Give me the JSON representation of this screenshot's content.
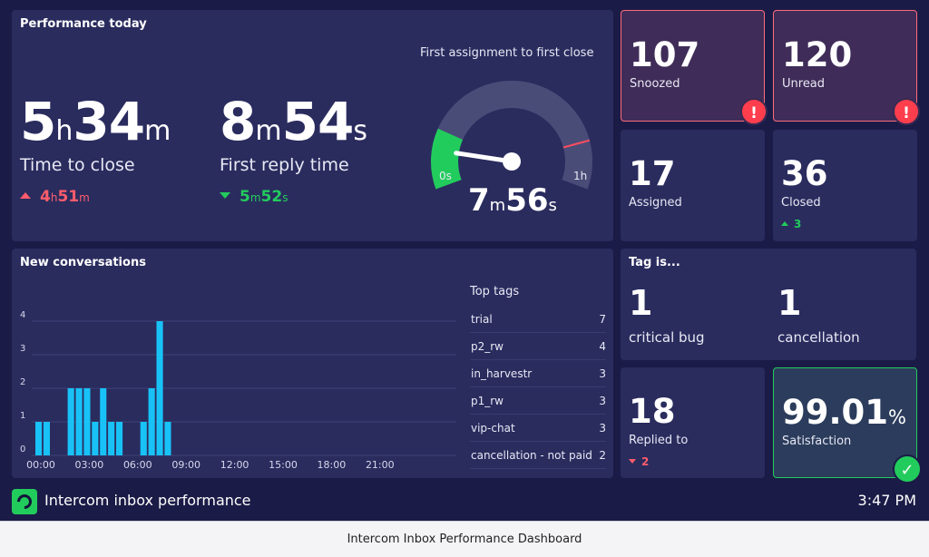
{
  "performance": {
    "title": "Performance today",
    "time_to_close": {
      "hours": "5",
      "hours_unit": "h",
      "minutes": "34",
      "minutes_unit": "m",
      "label": "Time to close",
      "delta": {
        "direction": "up",
        "color": "#ff5c6c",
        "hours": "4",
        "hours_unit": "h",
        "minutes": "51",
        "minutes_unit": "m"
      }
    },
    "first_reply": {
      "minutes": "8",
      "minutes_unit": "m",
      "seconds": "54",
      "seconds_unit": "s",
      "label": "First reply time",
      "delta": {
        "direction": "down",
        "color": "#22cc5c",
        "minutes": "5",
        "minutes_unit": "m",
        "seconds": "52",
        "seconds_unit": "s"
      }
    },
    "gauge": {
      "title": "First assignment to first close",
      "min_label": "0s",
      "max_label": "1h",
      "value_fraction": 0.13,
      "green_fraction": 0.2,
      "red_marker_fraction": 0.84,
      "value": {
        "minutes": "7",
        "minutes_unit": "m",
        "seconds": "56",
        "seconds_unit": "s"
      }
    }
  },
  "tiles": {
    "snoozed": {
      "value": "107",
      "label": "Snoozed",
      "alert": "!"
    },
    "unread": {
      "value": "120",
      "label": "Unread",
      "alert": "!"
    },
    "assigned": {
      "value": "17",
      "label": "Assigned"
    },
    "closed": {
      "value": "36",
      "label": "Closed",
      "delta": "3"
    },
    "replied": {
      "value": "18",
      "label": "Replied to",
      "delta": "2"
    },
    "satisfaction": {
      "value": "99.01",
      "unit": "%",
      "label": "Satisfaction",
      "check": "✓"
    }
  },
  "tag_is": {
    "title": "Tag is...",
    "items": [
      {
        "value": "1",
        "label": "critical bug"
      },
      {
        "value": "1",
        "label": "cancellation"
      }
    ]
  },
  "conversations": {
    "title": "New conversations",
    "top_tags_title": "Top tags",
    "top_tags": [
      {
        "name": "trial",
        "count": "7"
      },
      {
        "name": "p2_rw",
        "count": "4"
      },
      {
        "name": "in_harvestr",
        "count": "3"
      },
      {
        "name": "p1_rw",
        "count": "3"
      },
      {
        "name": "vip-chat",
        "count": "3"
      },
      {
        "name": "cancellation - not paid",
        "count": "2"
      }
    ]
  },
  "chart_data": {
    "type": "bar",
    "title": "New conversations",
    "x_tick_labels": [
      "00:00",
      "03:00",
      "06:00",
      "09:00",
      "12:00",
      "15:00",
      "18:00",
      "21:00"
    ],
    "y_ticks": [
      0,
      1,
      2,
      3,
      4
    ],
    "ylim": [
      0,
      4
    ],
    "bar_color": "#18c2f7",
    "half_hour_slot_values": [
      1,
      1,
      0,
      0,
      2,
      2,
      2,
      1,
      2,
      1,
      1,
      0,
      0,
      1,
      2,
      4,
      1,
      0,
      0,
      0,
      0,
      0,
      0,
      0,
      0,
      0,
      0,
      0,
      0,
      0,
      0,
      0,
      0,
      0,
      0,
      0,
      0,
      0,
      0,
      0,
      0,
      0,
      0,
      0,
      0,
      0,
      0,
      0
    ]
  },
  "footer": {
    "title": "Intercom inbox performance",
    "clock": "3:47 PM"
  },
  "caption": "Intercom Inbox Performance Dashboard"
}
